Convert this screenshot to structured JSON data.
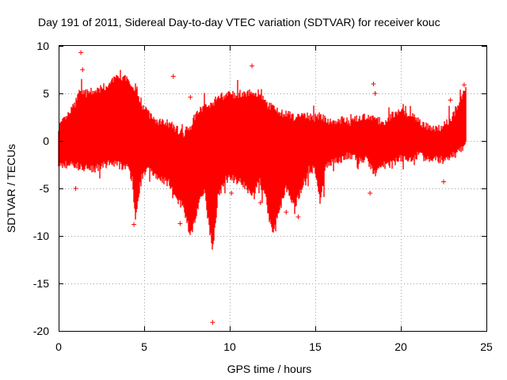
{
  "chart_data": {
    "type": "scatter",
    "title": "Day 191 of 2011, Sidereal Day-to-day VTEC variation (SDTVAR) for receiver kouc",
    "xlabel": "GPS time / hours",
    "ylabel": "SDTVAR / TECUs",
    "xlim": [
      0,
      25
    ],
    "ylim": [
      -20,
      10
    ],
    "xticks": [
      0,
      5,
      10,
      15,
      20,
      25
    ],
    "yticks": [
      -20,
      -15,
      -10,
      -5,
      0,
      5,
      10
    ],
    "xtick_labels": [
      "0",
      "5",
      "10",
      "15",
      "20",
      "25"
    ],
    "ytick_labels": [
      "-20",
      "-15",
      "-10",
      "-5",
      "0",
      "5",
      "10"
    ],
    "grid": true,
    "marker": "+",
    "series": [
      {
        "name": "SDTVAR",
        "color": "#ff0000",
        "envelope": {
          "x": [
            0.0,
            0.5,
            1.0,
            1.3,
            1.6,
            2.0,
            2.5,
            3.0,
            3.5,
            4.0,
            4.3,
            4.5,
            4.8,
            5.2,
            5.6,
            6.0,
            6.5,
            6.9,
            7.3,
            7.7,
            8.0,
            8.5,
            8.8,
            9.0,
            9.3,
            9.7,
            10.2,
            10.8,
            11.3,
            11.7,
            12.1,
            12.5,
            12.9,
            13.3,
            13.8,
            14.2,
            14.6,
            15.0,
            15.3,
            15.6,
            16.0,
            16.5,
            17.0,
            17.5,
            18.0,
            18.5,
            19.0,
            19.5,
            20.0,
            20.5,
            21.0,
            21.5,
            22.0,
            22.5,
            23.0,
            23.4,
            23.8
          ],
          "upper": [
            1.5,
            2.5,
            4.0,
            5.5,
            5.0,
            5.2,
            5.5,
            6.0,
            6.8,
            6.5,
            5.2,
            5.8,
            4.0,
            3.0,
            2.2,
            2.0,
            1.8,
            1.2,
            0.8,
            1.5,
            2.8,
            3.5,
            3.8,
            4.0,
            4.5,
            4.8,
            4.9,
            5.0,
            5.2,
            5.0,
            4.0,
            3.5,
            3.0,
            2.8,
            2.5,
            2.6,
            2.4,
            2.5,
            2.6,
            2.3,
            2.0,
            2.2,
            2.0,
            2.3,
            2.5,
            2.2,
            2.0,
            2.8,
            3.2,
            2.8,
            2.2,
            1.5,
            1.2,
            1.6,
            2.5,
            4.0,
            5.8
          ],
          "lower": [
            -2.5,
            -2.5,
            -2.5,
            -2.8,
            -2.8,
            -3.0,
            -2.6,
            -2.4,
            -2.5,
            -2.8,
            -4.0,
            -8.5,
            -4.0,
            -3.0,
            -3.5,
            -4.0,
            -4.5,
            -6.0,
            -7.0,
            -10.0,
            -8.0,
            -5.0,
            -9.0,
            -11.5,
            -6.0,
            -4.0,
            -4.0,
            -4.5,
            -6.0,
            -4.0,
            -6.0,
            -10.0,
            -7.0,
            -5.0,
            -7.0,
            -5.0,
            -3.0,
            -3.0,
            -6.5,
            -3.0,
            -2.0,
            -2.0,
            -1.5,
            -2.0,
            -2.0,
            -3.5,
            -2.5,
            -2.5,
            -1.8,
            -2.0,
            -1.5,
            -1.8,
            -2.0,
            -2.0,
            -1.5,
            -1.2,
            -0.5
          ]
        },
        "outliers": [
          {
            "x": 1.0,
            "y": -5.0
          },
          {
            "x": 1.3,
            "y": 9.3
          },
          {
            "x": 1.4,
            "y": 7.5
          },
          {
            "x": 4.4,
            "y": -8.8
          },
          {
            "x": 6.7,
            "y": 6.8
          },
          {
            "x": 7.1,
            "y": -8.7
          },
          {
            "x": 7.7,
            "y": 4.6
          },
          {
            "x": 9.0,
            "y": -19.1
          },
          {
            "x": 10.1,
            "y": -5.5
          },
          {
            "x": 11.3,
            "y": 7.9
          },
          {
            "x": 11.8,
            "y": -6.5
          },
          {
            "x": 12.5,
            "y": -8.5
          },
          {
            "x": 13.3,
            "y": -7.5
          },
          {
            "x": 14.0,
            "y": -8.0
          },
          {
            "x": 18.2,
            "y": -5.5
          },
          {
            "x": 18.4,
            "y": 6.0
          },
          {
            "x": 18.5,
            "y": 5.0
          },
          {
            "x": 22.5,
            "y": -4.3
          },
          {
            "x": 22.9,
            "y": 4.3
          },
          {
            "x": 23.7,
            "y": 5.9
          }
        ]
      }
    ]
  }
}
